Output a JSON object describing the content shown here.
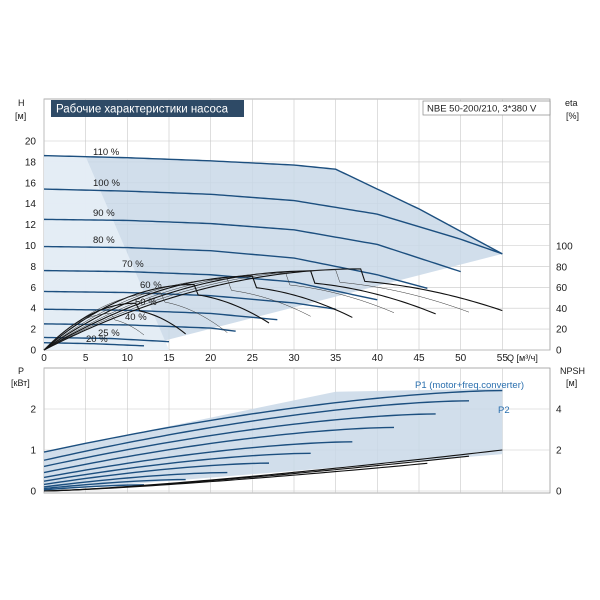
{
  "top_chart": {
    "title": "Рабочие характеристики насоса",
    "model": "NBE 50-200/210, 3*380 V",
    "y_left_label": "H",
    "y_left_unit": "[м]",
    "y_right_label": "eta",
    "y_right_unit": "[%]",
    "x_label": "Q [м³/ч]",
    "x_ticks": [
      "0",
      "5",
      "10",
      "15",
      "20",
      "25",
      "30",
      "35",
      "40",
      "45",
      "50",
      "55"
    ],
    "y_left_ticks": [
      "0",
      "2",
      "4",
      "6",
      "8",
      "10",
      "12",
      "14",
      "16",
      "18",
      "20"
    ],
    "y_right_ticks": [
      "0",
      "20",
      "40",
      "60",
      "80",
      "100"
    ],
    "speed_labels": [
      "110 %",
      "100 %",
      "90 %",
      "80 %",
      "70 %",
      "60 %",
      "50 %",
      "40 %",
      "25 %",
      "20 %"
    ]
  },
  "bottom_chart": {
    "y_left_label": "P",
    "y_left_unit": "[кВт]",
    "y_right_label": "NPSH",
    "y_right_unit": "[м]",
    "x_ticks": [
      "0",
      "5",
      "10",
      "15",
      "20",
      "25",
      "30",
      "35",
      "40",
      "45",
      "50",
      "55"
    ],
    "y_left_ticks": [
      "0",
      "1",
      "2"
    ],
    "y_right_ticks": [
      "0",
      "2",
      "4"
    ],
    "p1_label": "P1 (motor+freq.converter)",
    "p2_label": "P2"
  },
  "colors": {
    "curve": "#1c4f7f",
    "area": "#c9d8e8",
    "title_bg": "#2e4a66",
    "efficiency": "#111111"
  },
  "chart_data": [
    {
      "type": "line",
      "title": "Рабочие характеристики насоса",
      "xlabel": "Q [м³/ч]",
      "ylabel": "H [м]",
      "xlim": [
        0,
        60
      ],
      "ylim": [
        0,
        22
      ],
      "series": [
        {
          "name": "110 %",
          "x": [
            0,
            10,
            20,
            30,
            35,
            45,
            55
          ],
          "y": [
            18.6,
            18.4,
            18.1,
            17.7,
            17.3,
            13.5,
            9.2
          ]
        },
        {
          "name": "100 %",
          "x": [
            0,
            10,
            20,
            30,
            40,
            50,
            55
          ],
          "y": [
            15.4,
            15.2,
            14.9,
            14.3,
            13.0,
            10.6,
            9.2
          ]
        },
        {
          "name": "90 %",
          "x": [
            0,
            10,
            20,
            30,
            40,
            50
          ],
          "y": [
            12.5,
            12.4,
            12.1,
            11.5,
            10.1,
            7.5
          ]
        },
        {
          "name": "80 %",
          "x": [
            0,
            10,
            20,
            30,
            40,
            46
          ],
          "y": [
            9.9,
            9.8,
            9.5,
            8.8,
            7.2,
            5.9
          ]
        },
        {
          "name": "70 %",
          "x": [
            0,
            10,
            20,
            30,
            40
          ],
          "y": [
            7.6,
            7.5,
            7.2,
            6.5,
            4.8
          ]
        },
        {
          "name": "60 %",
          "x": [
            0,
            10,
            20,
            30,
            35
          ],
          "y": [
            5.6,
            5.5,
            5.2,
            4.5,
            3.9
          ]
        },
        {
          "name": "50 %",
          "x": [
            0,
            10,
            20,
            28
          ],
          "y": [
            3.9,
            3.8,
            3.5,
            2.9
          ]
        },
        {
          "name": "40 %",
          "x": [
            0,
            10,
            20,
            23
          ],
          "y": [
            2.5,
            2.4,
            2.1,
            1.8
          ]
        },
        {
          "name": "25 %",
          "x": [
            0,
            8,
            15
          ],
          "y": [
            1.2,
            1.1,
            0.8
          ]
        },
        {
          "name": "20 %",
          "x": [
            0,
            6,
            12
          ],
          "y": [
            0.7,
            0.6,
            0.4
          ]
        }
      ]
    },
    {
      "type": "line",
      "title": "",
      "xlabel": "Q [м³/ч]",
      "ylabel": "P [кВт]",
      "xlim": [
        0,
        60
      ],
      "ylim": [
        0,
        2.6
      ],
      "series": [
        {
          "name": "P1 (motor+freq.converter)",
          "x": [
            0,
            35,
            55
          ],
          "y": [
            0.95,
            2.42,
            2.5
          ]
        },
        {
          "name": "P2",
          "x": [
            0,
            35,
            55
          ],
          "y": [
            0.8,
            2.05,
            2.2
          ]
        }
      ]
    }
  ]
}
